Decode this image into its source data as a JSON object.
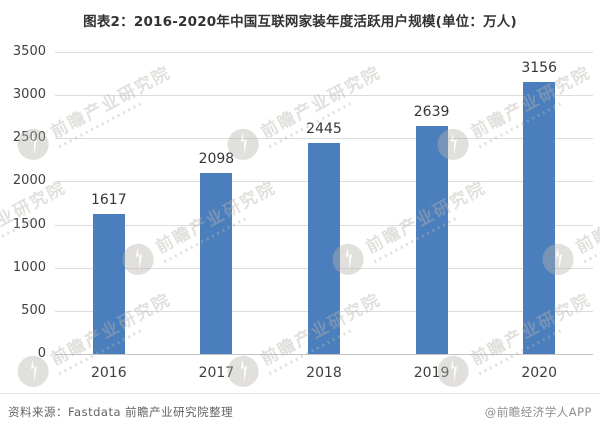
{
  "title": "图表2：2016-2020年中国互联网家装年度活跃用户规模(单位：万人)",
  "watermark": {
    "text": "前瞻产业研究院"
  },
  "footer": {
    "source": "资料来源：Fastdata 前瞻产业研究院整理",
    "brand": "@前瞻经济学人APP"
  },
  "colors": {
    "bar": "#4b7ebc",
    "gridline": "#dcdcdc",
    "axis_text": "#3f3f3f",
    "title_text": "#323232",
    "watermark": "#b9b4ac"
  },
  "chart_data": {
    "type": "bar",
    "categories": [
      "2016",
      "2017",
      "2018",
      "2019",
      "2020"
    ],
    "values": [
      1617,
      2098,
      2445,
      2639,
      3156
    ],
    "title": "图表2：2016-2020年中国互联网家装年度活跃用户规模(单位：万人)",
    "xlabel": "",
    "ylabel": "",
    "unit": "万人",
    "ylim": [
      0,
      3500
    ],
    "ytick_step": 500,
    "yticks": [
      0,
      500,
      1000,
      1500,
      2000,
      2500,
      3000,
      3500
    ],
    "grid": true,
    "legend_position": "none",
    "bar_color": "#4b7ebc"
  }
}
